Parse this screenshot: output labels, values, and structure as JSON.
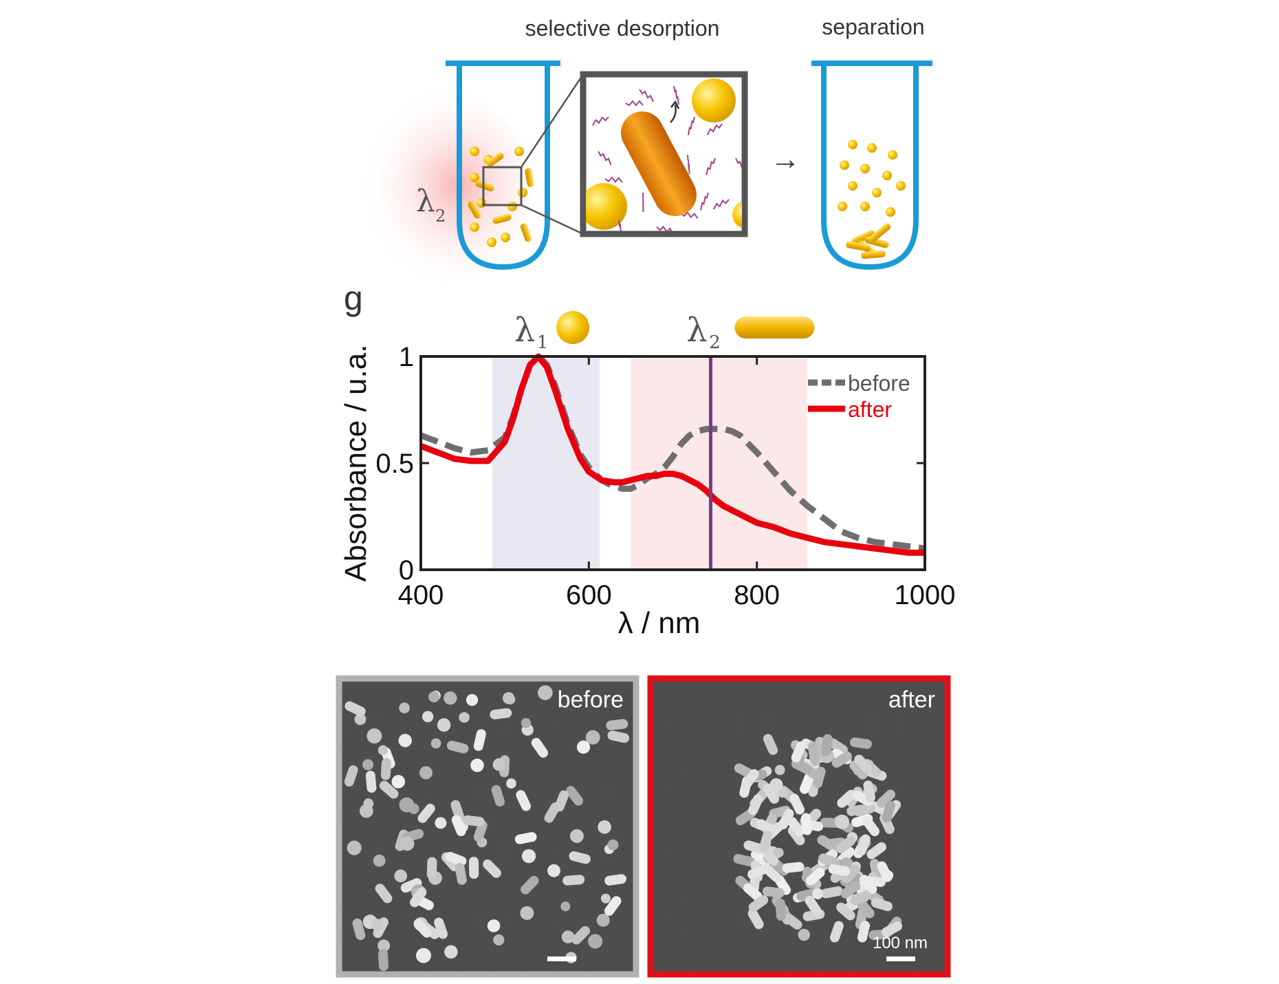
{
  "schematic": {
    "label_desorption": "selective desorption",
    "label_separation": "separation",
    "lambda2_symbol": "λ",
    "lambda2_sub": "2",
    "arrow_glyph": "→",
    "tube_color": "#1a9ad6",
    "gold_color": "#f5c400",
    "ligand_color": "#a0408c"
  },
  "panel_letter": "g",
  "chart_data": {
    "type": "line",
    "xlabel": "λ / nm",
    "ylabel": "Absorbance / u.a.",
    "xlim": [
      400,
      1000
    ],
    "ylim": [
      0,
      1
    ],
    "xticks": [
      400,
      600,
      800,
      1000
    ],
    "yticks": [
      0,
      0.5,
      1
    ],
    "xtick_labels": [
      "400",
      "600",
      "800",
      "1000"
    ],
    "ytick_labels": [
      "0",
      "0.5",
      "1"
    ],
    "grid": false,
    "legend_position": "top-right",
    "bands": [
      {
        "from": 485,
        "to": 613,
        "color": "#e8e8f2"
      },
      {
        "from": 650,
        "to": 860,
        "color": "#fbe8e8"
      }
    ],
    "vline": {
      "x": 745,
      "color": "#7a3a8a"
    },
    "peak_labels": [
      {
        "symbol": "λ",
        "sub": "1",
        "x": 540
      },
      {
        "symbol": "λ",
        "sub": "2",
        "x": 745
      }
    ],
    "series": [
      {
        "name": "before",
        "color": "#6e6e6e",
        "dash": true,
        "x": [
          400,
          420,
          440,
          460,
          480,
          500,
          510,
          520,
          530,
          540,
          550,
          560,
          575,
          590,
          600,
          615,
          630,
          640,
          650,
          660,
          670,
          680,
          690,
          700,
          710,
          720,
          730,
          740,
          750,
          760,
          770,
          780,
          790,
          800,
          820,
          840,
          860,
          880,
          900,
          920,
          940,
          960,
          980,
          1000
        ],
        "y": [
          0.63,
          0.6,
          0.57,
          0.55,
          0.56,
          0.62,
          0.72,
          0.85,
          0.96,
          1.0,
          0.96,
          0.86,
          0.68,
          0.54,
          0.48,
          0.42,
          0.39,
          0.38,
          0.38,
          0.4,
          0.43,
          0.45,
          0.48,
          0.53,
          0.59,
          0.63,
          0.65,
          0.66,
          0.66,
          0.66,
          0.65,
          0.63,
          0.59,
          0.55,
          0.46,
          0.37,
          0.3,
          0.24,
          0.18,
          0.15,
          0.13,
          0.12,
          0.11,
          0.1
        ]
      },
      {
        "name": "after",
        "color": "#e8000e",
        "dash": false,
        "x": [
          400,
          420,
          440,
          460,
          480,
          500,
          510,
          520,
          530,
          540,
          550,
          560,
          575,
          590,
          600,
          615,
          630,
          640,
          650,
          660,
          670,
          680,
          690,
          700,
          710,
          720,
          730,
          740,
          750,
          760,
          770,
          780,
          790,
          800,
          820,
          840,
          860,
          880,
          900,
          920,
          940,
          960,
          980,
          1000
        ],
        "y": [
          0.58,
          0.55,
          0.52,
          0.51,
          0.51,
          0.6,
          0.71,
          0.85,
          0.96,
          1.0,
          0.95,
          0.84,
          0.66,
          0.52,
          0.46,
          0.42,
          0.41,
          0.41,
          0.42,
          0.43,
          0.44,
          0.44,
          0.45,
          0.45,
          0.44,
          0.42,
          0.4,
          0.37,
          0.33,
          0.3,
          0.28,
          0.26,
          0.24,
          0.22,
          0.2,
          0.17,
          0.15,
          0.13,
          0.12,
          0.11,
          0.1,
          0.09,
          0.08,
          0.08
        ]
      }
    ]
  },
  "micrographs": {
    "before_label": "before",
    "after_label": "after",
    "scale_label": "100 nm",
    "before_frame_color": "#b0b0b0",
    "after_frame_color": "#e0101a"
  }
}
